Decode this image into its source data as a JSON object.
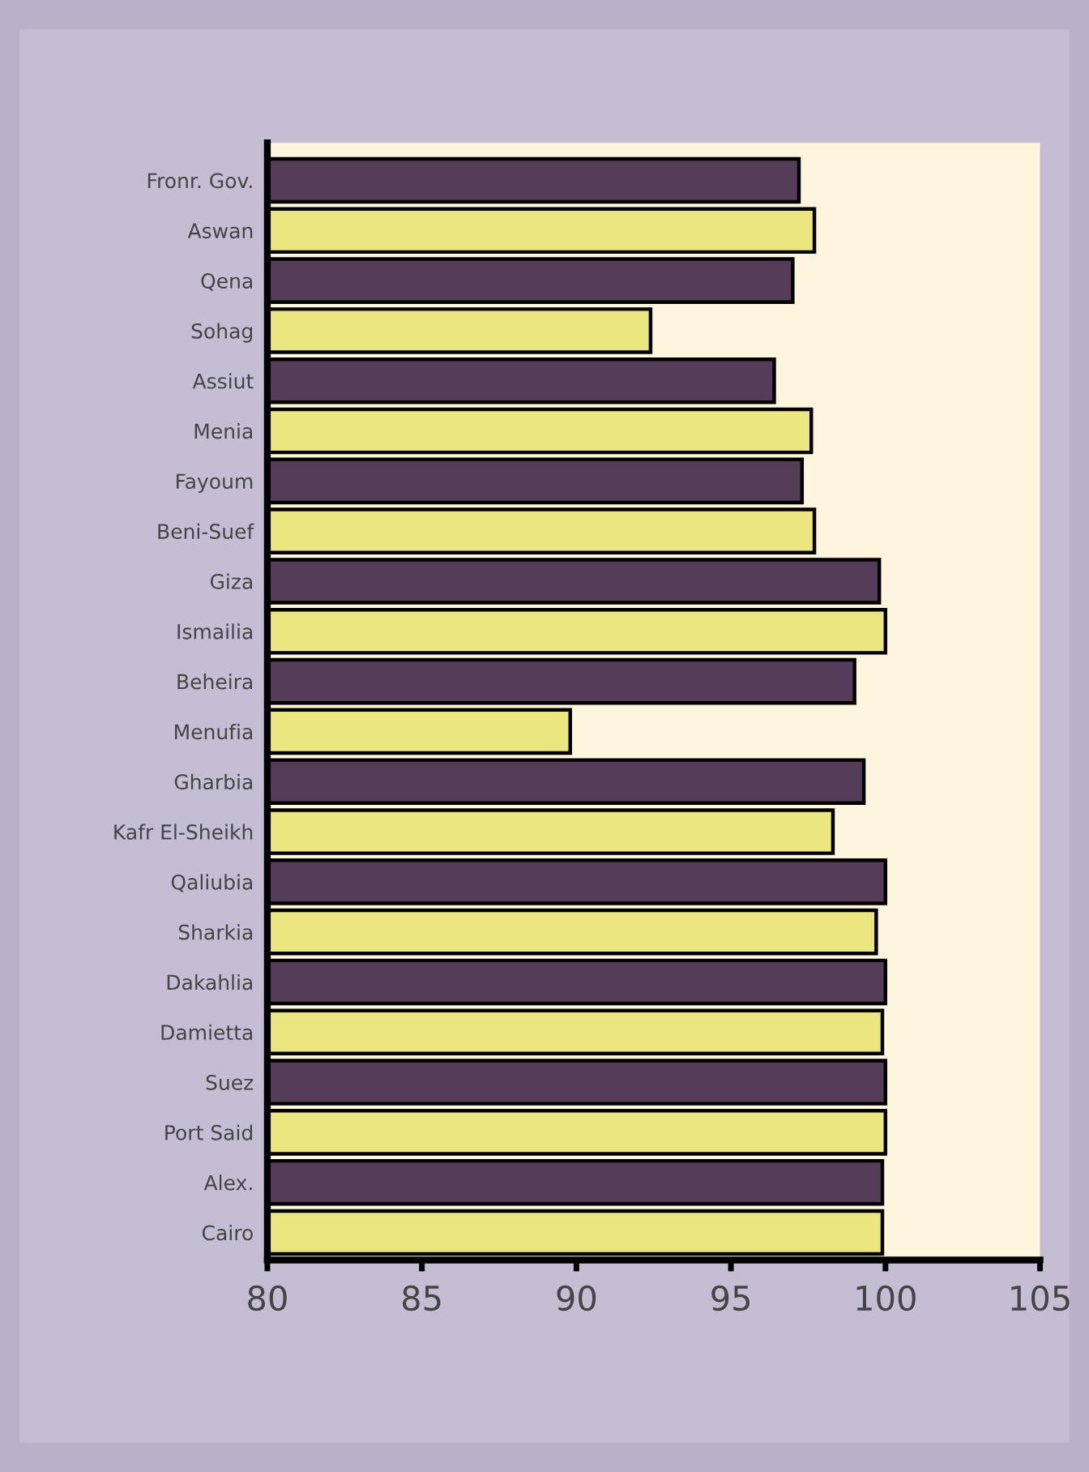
{
  "chart_data": {
    "type": "bar",
    "orientation": "horizontal",
    "categories": [
      "Fronr. Gov.",
      "Aswan",
      "Qena",
      "Sohag",
      "Assiut",
      "Menia",
      "Fayoum",
      "Beni-Suef",
      "Giza",
      "Ismailia",
      "Beheira",
      "Menufia",
      "Gharbia",
      "Kafr El-Sheikh",
      "Qaliubia",
      "Sharkia",
      "Dakahlia",
      "Damietta",
      "Suez",
      "Port Said",
      "Alex.",
      "Cairo"
    ],
    "values": [
      97.2,
      97.7,
      97.0,
      92.4,
      96.4,
      97.6,
      97.3,
      97.7,
      99.8,
      100,
      99.0,
      89.8,
      99.3,
      98.3,
      100,
      99.7,
      100,
      99.9,
      100,
      100,
      99.9,
      99.9
    ],
    "colors": [
      "#553d5a",
      "#ece680",
      "#553d5a",
      "#ece680",
      "#553d5a",
      "#ece680",
      "#553d5a",
      "#ece680",
      "#553d5a",
      "#ece680",
      "#553d5a",
      "#ece680",
      "#553d5a",
      "#ece680",
      "#553d5a",
      "#ece680",
      "#553d5a",
      "#ece680",
      "#553d5a",
      "#ece680",
      "#553d5a",
      "#ece680"
    ],
    "xlim": [
      80,
      105
    ],
    "xticks": [
      80,
      85,
      90,
      95,
      100,
      105
    ],
    "grid": false,
    "legend": false
  }
}
